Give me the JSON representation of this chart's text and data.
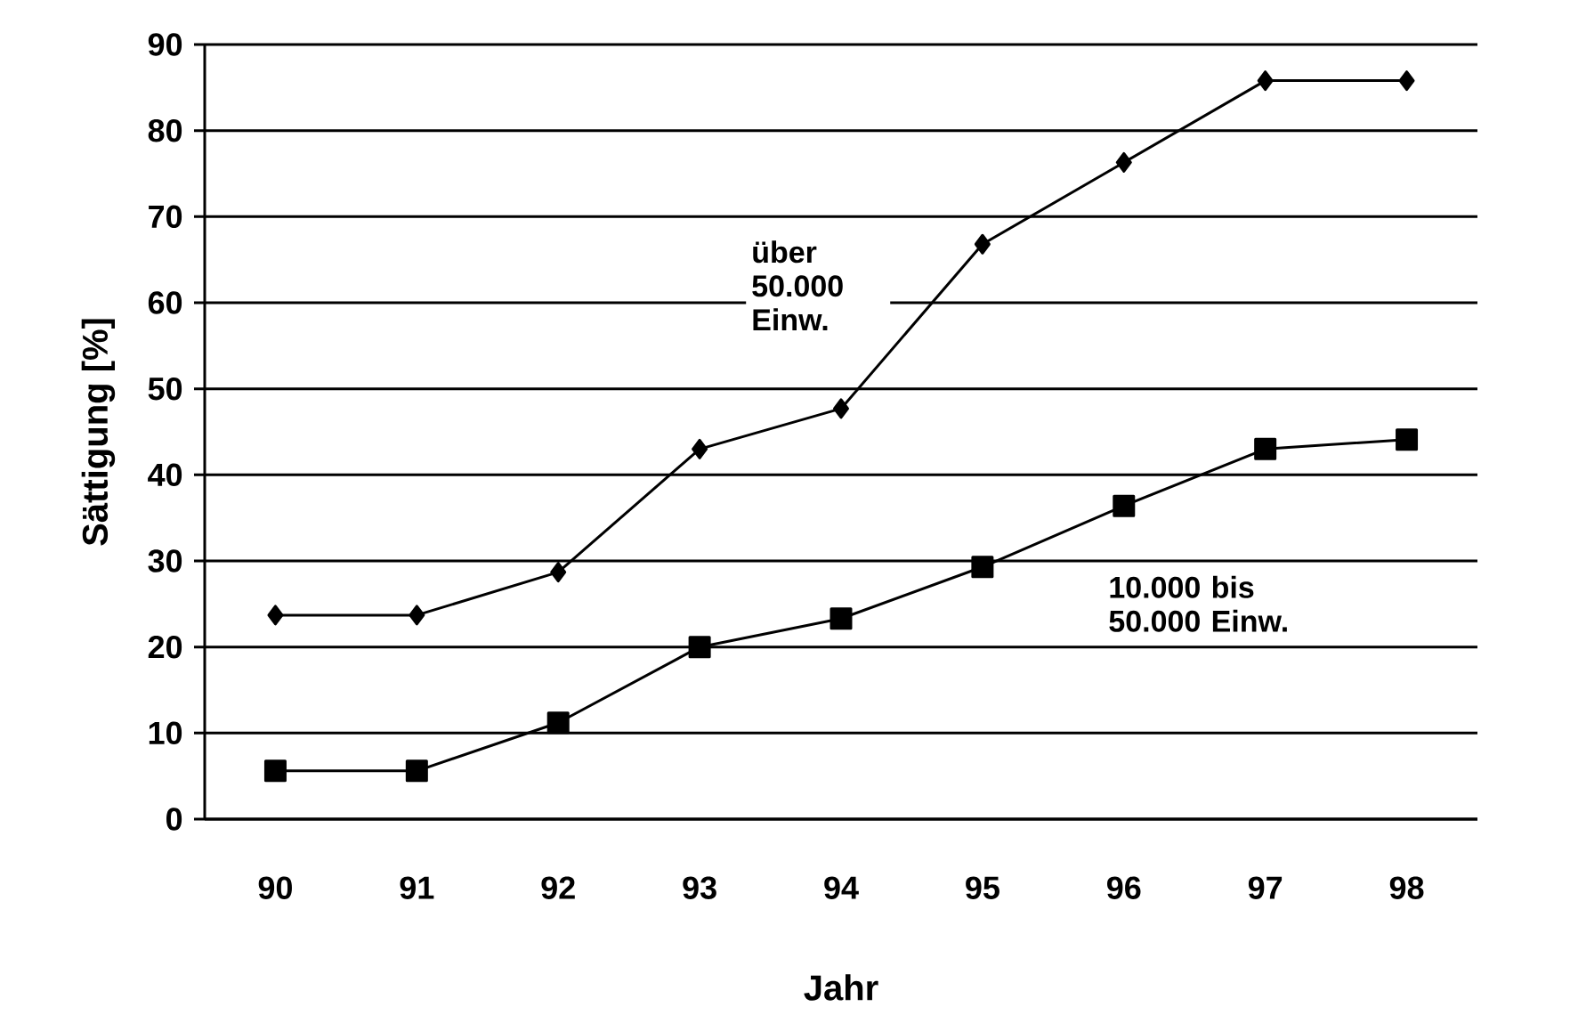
{
  "chart_data": {
    "type": "line",
    "xlabel": "Jahr",
    "ylabel": "Sättigung [%]",
    "categories": [
      "90",
      "91",
      "92",
      "93",
      "94",
      "95",
      "96",
      "97",
      "98"
    ],
    "series": [
      {
        "name": "über 50.000 Einw.",
        "color": "#000000",
        "marker": "diamond",
        "values": [
          23.7,
          23.7,
          28.7,
          43.0,
          47.7,
          66.8,
          76.3,
          85.8,
          85.8
        ]
      },
      {
        "name": "10.000 bis 50.000 Einw.",
        "color": "#000000",
        "marker": "square",
        "values": [
          5.6,
          5.6,
          11.2,
          20.0,
          23.3,
          29.3,
          36.4,
          43.0,
          44.1
        ]
      }
    ],
    "ylim": [
      0,
      90
    ],
    "yticks": [
      0,
      10,
      20,
      30,
      40,
      50,
      60,
      70,
      80,
      90
    ],
    "grid": "y",
    "line_style": "solid"
  }
}
